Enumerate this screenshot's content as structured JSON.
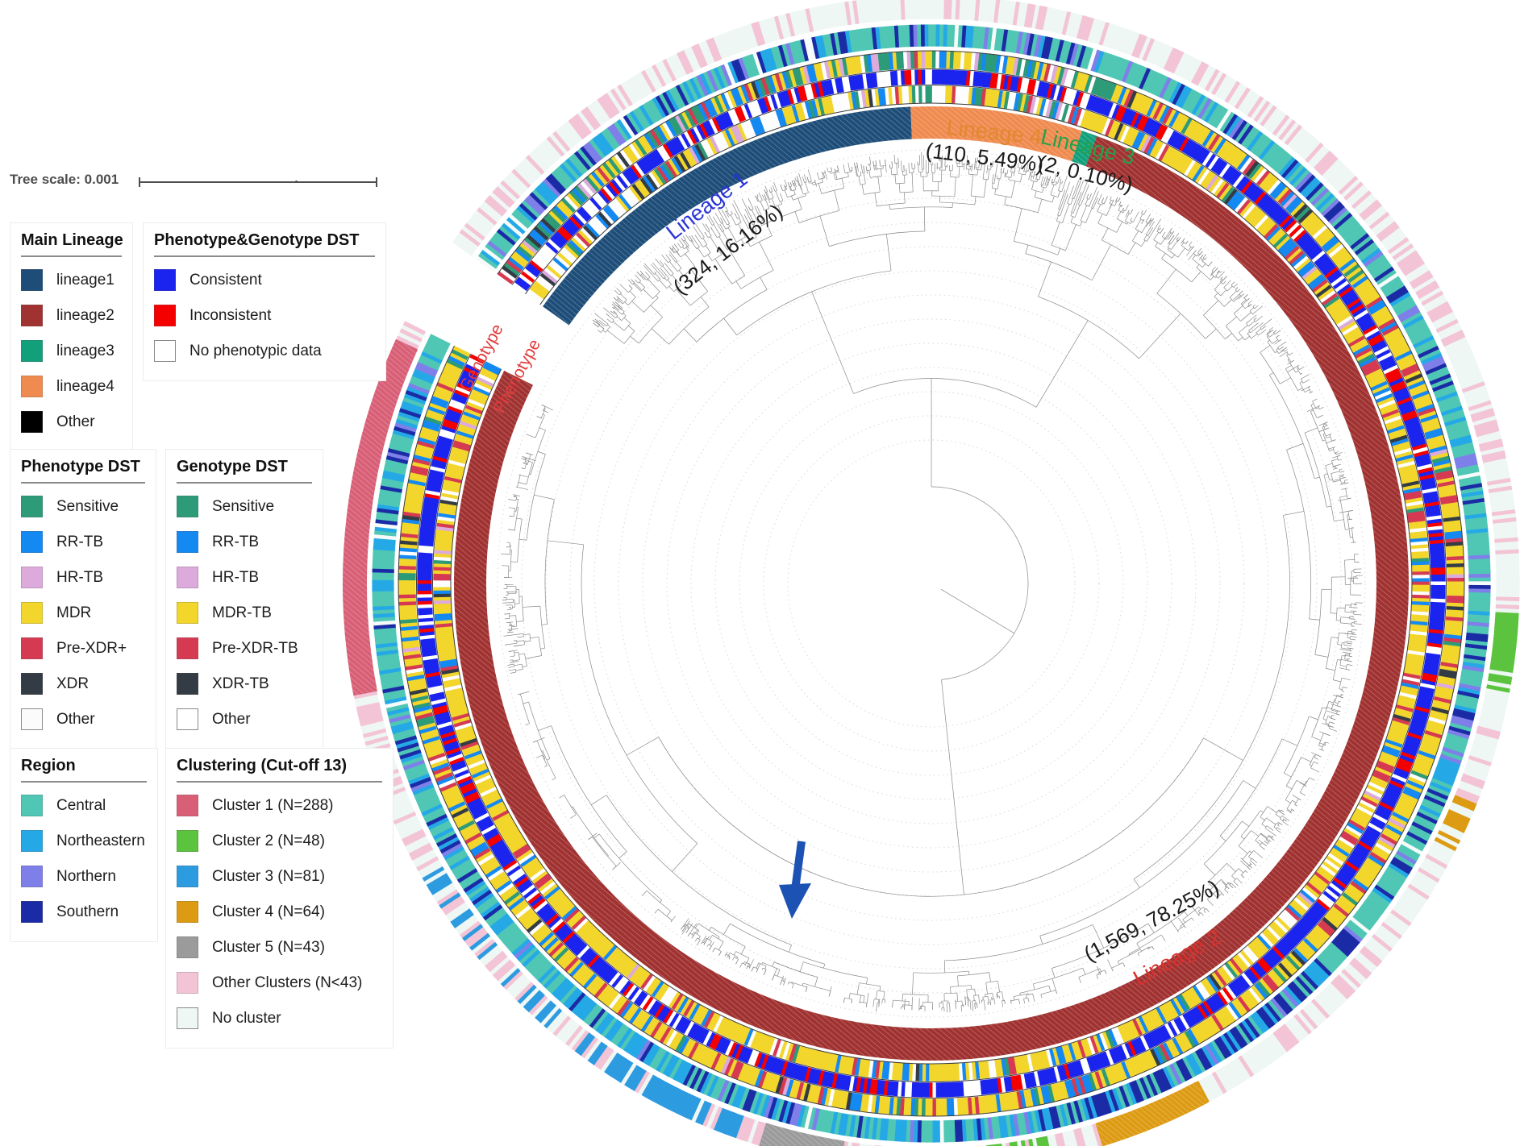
{
  "figure": {
    "tree_scale": {
      "label": "Tree scale:",
      "value": "0.001"
    }
  },
  "legends": {
    "main_lineage": {
      "title": "Main Lineage",
      "items": [
        {
          "label": "lineage1",
          "color": "#1d4d78"
        },
        {
          "label": "lineage2",
          "color": "#a03231"
        },
        {
          "label": "lineage3",
          "color": "#12a07b"
        },
        {
          "label": "lineage4",
          "color": "#ef8b50"
        },
        {
          "label": "Other",
          "color": "#000000"
        }
      ]
    },
    "pheno_geno_dst": {
      "title": "Phenotype&Genotype DST",
      "items": [
        {
          "label": "Consistent",
          "color": "#1b24ee"
        },
        {
          "label": "Inconsistent",
          "color": "#f40000"
        },
        {
          "label": "No phenotypic data",
          "color": "#ffffff",
          "border": true
        }
      ]
    },
    "phenotype_dst": {
      "title": "Phenotype DST",
      "items": [
        {
          "label": "Sensitive",
          "color": "#2d9b78"
        },
        {
          "label": "RR-TB",
          "color": "#1489f2"
        },
        {
          "label": "HR-TB",
          "color": "#dcabdb"
        },
        {
          "label": "MDR",
          "color": "#f2d62c"
        },
        {
          "label": "Pre-XDR+",
          "color": "#d63a52"
        },
        {
          "label": "XDR",
          "color": "#333b44"
        },
        {
          "label": "Other",
          "color": "#fbfbfb",
          "border": true
        }
      ]
    },
    "genotype_dst": {
      "title": "Genotype DST",
      "items": [
        {
          "label": "Sensitive",
          "color": "#2d9b78"
        },
        {
          "label": "RR-TB",
          "color": "#1489f2"
        },
        {
          "label": "HR-TB",
          "color": "#dcabdb"
        },
        {
          "label": "MDR-TB",
          "color": "#f2d62c"
        },
        {
          "label": "Pre-XDR-TB",
          "color": "#d63a52"
        },
        {
          "label": "XDR-TB",
          "color": "#333b44"
        },
        {
          "label": "Other",
          "color": "#ffffff",
          "border": true
        }
      ]
    },
    "region": {
      "title": "Region",
      "items": [
        {
          "label": "Central",
          "color": "#4fc7b4"
        },
        {
          "label": "Northeastern",
          "color": "#25a9e6"
        },
        {
          "label": "Northern",
          "color": "#7f7fe9"
        },
        {
          "label": "Southern",
          "color": "#1b2ba6"
        }
      ]
    },
    "clustering": {
      "title": "Clustering (Cut-off 13)",
      "items": [
        {
          "label": "Cluster 1 (N=288)",
          "color": "#d85f76"
        },
        {
          "label": "Cluster 2 (N=48)",
          "color": "#5bc33e"
        },
        {
          "label": "Cluster 3 (N=81)",
          "color": "#2d9be0"
        },
        {
          "label": "Cluster 4 (N=64)",
          "color": "#dd9b13"
        },
        {
          "label": "Cluster 5 (N=43)",
          "color": "#9b9b9b"
        },
        {
          "label": "Other Clusters (N<43)",
          "color": "#f3c4d6"
        },
        {
          "label": "No cluster",
          "color": "#eef7f3",
          "border": true
        }
      ]
    }
  },
  "chart_data": {
    "type": "circular_phylogenetic_tree",
    "title": "",
    "tree_scale_value": 0.001,
    "gap": {
      "start_deg": 296.5,
      "end_deg": 305.5
    },
    "lineage_segments": [
      {
        "id": "L1",
        "label": "Lineage 1",
        "color": "#1d4d78",
        "count": 324,
        "percent": 16.16,
        "start_deg": 305.5,
        "end_deg": 357.5
      },
      {
        "id": "L4",
        "label": "Lineage 4",
        "color": "#ef8b50",
        "count": 110,
        "percent": 5.49,
        "start_deg": 357.5,
        "end_deg": 378.4
      },
      {
        "id": "L3",
        "label": "Lineage 3",
        "color": "#12a07b",
        "count": 2,
        "percent": 0.1,
        "start_deg": 378.4,
        "end_deg": 380.3
      },
      {
        "id": "L2",
        "label": "Lineage 2",
        "color": "#a03231",
        "count": 1569,
        "percent": 78.25,
        "start_deg": 380.3,
        "end_deg": 656.5
      }
    ],
    "ring_order_outer_to_inner": [
      "Clustering",
      "Region",
      "Genotype DST",
      "Phenotype&Genotype DST",
      "Phenotype DST",
      "Main Lineage",
      "tree"
    ],
    "palette": {
      "sensitive": "#2d9b78",
      "rr": "#1489f2",
      "hr": "#dcabdb",
      "mdr": "#f2d62c",
      "prexdr": "#d63a52",
      "xdr": "#333b44",
      "other": "#fdfdfd",
      "consistent": "#1b24ee",
      "inconsistent": "#f40000",
      "nodata": "#ffffff",
      "central": "#4fc7b4",
      "northeastern": "#25a9e6",
      "northern": "#7f7fe9",
      "southern": "#1b2ba6",
      "region_other": "#f6fbfa",
      "c1": "#d85f76",
      "c2": "#5bc33e",
      "c3": "#2d9be0",
      "c4": "#dd9b13",
      "c5": "#9b9b9b",
      "other_clusters": "#f3c4d6",
      "none": "#eef7f3"
    },
    "rings": [
      {
        "id": "phenotype",
        "label": "Phenotype",
        "zones": {
          "L1": {
            "other": 0.38,
            "mdr": 0.2,
            "rr": 0.16,
            "prexdr": 0.07,
            "sensitive": 0.08,
            "hr": 0.06,
            "xdr": 0.05
          },
          "L4": {
            "other": 0.3,
            "mdr": 0.26,
            "rr": 0.18,
            "sensitive": 0.1,
            "prexdr": 0.1,
            "hr": 0.06
          },
          "L3": {
            "mdr": 1
          },
          "L2": {
            "mdr": 0.56,
            "rr": 0.13,
            "prexdr": 0.12,
            "other": 0.13,
            "sensitive": 0.02,
            "hr": 0.02,
            "xdr": 0.02
          }
        },
        "overrides": []
      },
      {
        "id": "consistency",
        "label": "Phenotype&Genotype DST",
        "zones": {
          "L1": {
            "consistent": 0.45,
            "nodata": 0.38,
            "inconsistent": 0.17
          },
          "L4": {
            "consistent": 0.52,
            "nodata": 0.28,
            "inconsistent": 0.2
          },
          "L3": {
            "consistent": 1
          },
          "L2": {
            "consistent": 0.7,
            "nodata": 0.14,
            "inconsistent": 0.16
          }
        },
        "overrides": []
      },
      {
        "id": "genotype",
        "label": "Genotype",
        "zones": {
          "L1": {
            "sensitive": 0.28,
            "mdr": 0.26,
            "rr": 0.22,
            "other": 0.08,
            "hr": 0.06,
            "prexdr": 0.06,
            "xdr": 0.04
          },
          "L4": {
            "sensitive": 0.22,
            "mdr": 0.34,
            "rr": 0.16,
            "other": 0.1,
            "hr": 0.08,
            "prexdr": 0.1
          },
          "L3": {
            "sensitive": 1
          },
          "L2": {
            "mdr": 0.6,
            "rr": 0.13,
            "prexdr": 0.13,
            "sensitive": 0.07,
            "other": 0.04,
            "hr": 0.01,
            "xdr": 0.02
          }
        },
        "overrides": []
      },
      {
        "id": "region",
        "label": "Region",
        "zones": {
          "L1": {
            "central": 0.42,
            "northeastern": 0.22,
            "southern": 0.16,
            "northern": 0.12,
            "region_other": 0.08
          },
          "L4": {
            "central": 0.5,
            "northeastern": 0.18,
            "southern": 0.16,
            "northern": 0.12,
            "region_other": 0.04
          },
          "L3": {
            "central": 1
          },
          "L2": {
            "central": 0.58,
            "northeastern": 0.2,
            "northern": 0.1,
            "southern": 0.1,
            "region_other": 0.02
          }
        },
        "overrides": [
          {
            "start": 130,
            "end": 168,
            "w": {
              "southern": 0.45,
              "central": 0.27,
              "northeastern": 0.2,
              "northern": 0.08
            }
          },
          {
            "start": 196,
            "end": 228,
            "w": {
              "northeastern": 0.5,
              "central": 0.3,
              "southern": 0.12,
              "northern": 0.08
            }
          }
        ]
      },
      {
        "id": "clustering",
        "label": "Clustering",
        "zones": {
          "L1": {
            "none": 0.72,
            "other_clusters": 0.28
          },
          "L4": {
            "none": 0.7,
            "other_clusters": 0.3
          },
          "L3": {
            "none": 1
          },
          "L2": {
            "none": 0.72,
            "other_clusters": 0.28
          }
        },
        "overrides": [
          {
            "start": 259,
            "end": 294.5,
            "w": {
              "c1": 1
            },
            "solid": "c1"
          },
          {
            "start": 240,
            "end": 259,
            "w": {
              "other_clusters": 0.34,
              "none": 0.66
            }
          },
          {
            "start": 213.5,
            "end": 240,
            "w": {
              "c3": 0.3,
              "other_clusters": 0.28,
              "none": 0.42
            }
          },
          {
            "start": 199.5,
            "end": 213.5,
            "w": {
              "c3": 0.88,
              "none": 0.08,
              "other_clusters": 0.04
            }
          },
          {
            "start": 197,
            "end": 199.5,
            "w": {
              "other_clusters": 0.5,
              "none": 0.5
            }
          },
          {
            "start": 189,
            "end": 197,
            "w": {
              "c5": 1
            },
            "solid": "c5"
          },
          {
            "start": 175,
            "end": 189,
            "w": {
              "other_clusters": 0.55,
              "none": 0.45
            }
          },
          {
            "start": 168,
            "end": 174.5,
            "w": {
              "c2": 0.72,
              "other_clusters": 0.12,
              "none": 0.16
            }
          },
          {
            "start": 163,
            "end": 168,
            "w": {
              "other_clusters": 0.35,
              "none": 0.65
            }
          },
          {
            "start": 152,
            "end": 163,
            "w": {
              "c4": 1
            },
            "solid": "c4"
          },
          {
            "start": 112,
            "end": 118,
            "w": {
              "c4": 0.45,
              "none": 0.55
            }
          },
          {
            "start": 99.5,
            "end": 104,
            "w": {
              "c2": 0.35,
              "none": 0.65
            }
          },
          {
            "start": 93,
            "end": 99.5,
            "w": {
              "c2": 0.8,
              "none": 0.2
            }
          },
          {
            "start": 28,
            "end": 93,
            "w": {
              "other_clusters": 0.4,
              "none": 0.6
            }
          }
        ]
      }
    ],
    "labels": {
      "stats_color": "#1a1a1a",
      "lineage1": {
        "name": "Lineage 1",
        "stats": "(324, 16.16%)",
        "color": "#2a35d6"
      },
      "lineage4": {
        "name": "Lineage 4",
        "stats": "(110, 5.49%)",
        "color": "#e1882f"
      },
      "lineage3": {
        "name": "Lineage 3",
        "stats": "(2, 0.10%)",
        "color": "#27a04a"
      },
      "lineage2": {
        "name": "Lineage 2",
        "stats": "(1,569, 78.25%)",
        "color": "#d8312e"
      },
      "genotype_ring": {
        "text": "Genotype",
        "color": "#e23b3c"
      },
      "phenotype_ring": {
        "text": "Phenotype",
        "color": "#e23b3c"
      }
    },
    "arrow": {
      "color": "#1c52b4"
    }
  }
}
